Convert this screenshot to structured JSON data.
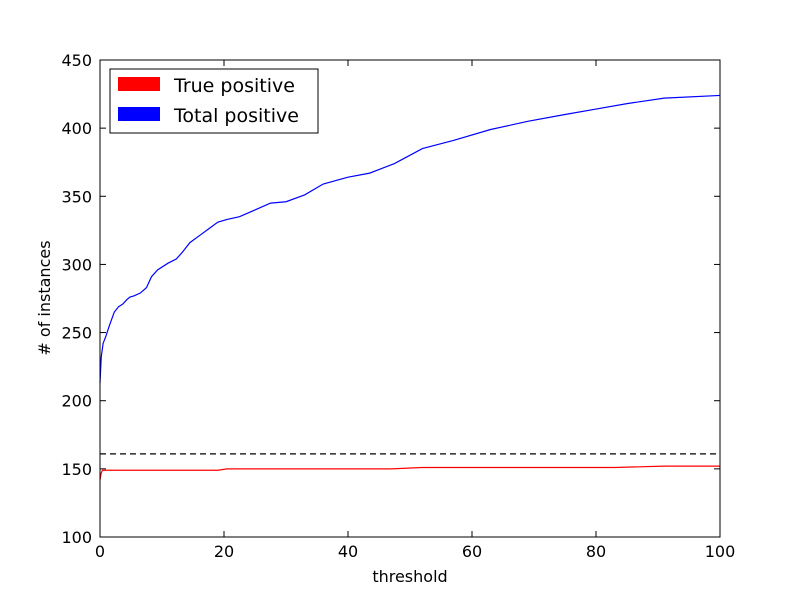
{
  "chart_data": {
    "type": "line",
    "title": "",
    "xlabel": "threshold",
    "ylabel": "# of instances",
    "xlim": [
      0,
      100
    ],
    "ylim": [
      100,
      450
    ],
    "x_ticks": [
      0,
      20,
      40,
      60,
      80,
      100
    ],
    "y_ticks": [
      100,
      150,
      200,
      250,
      300,
      350,
      400,
      450
    ],
    "grid": false,
    "legend_position": "upper-left",
    "series": [
      {
        "name": "True positive",
        "color": "#ff0000",
        "x": [
          0,
          0.2,
          0.4,
          1,
          3,
          10,
          19,
          20.5,
          30,
          40,
          47,
          52,
          60,
          70,
          83,
          91,
          100
        ],
        "y": [
          142,
          147,
          149,
          149,
          149,
          149,
          149,
          150,
          150,
          150,
          150,
          151,
          151,
          151,
          151,
          152,
          152
        ]
      },
      {
        "name": "Total positive",
        "color": "#0000ff",
        "x": [
          0,
          0.2,
          0.5,
          1,
          1.5,
          2.3,
          3,
          3.7,
          4.3,
          4.8,
          5.5,
          6.5,
          7.5,
          8.3,
          9.3,
          11,
          12.3,
          13.3,
          14.5,
          16,
          17.5,
          19,
          20.5,
          22.5,
          25,
          27.5,
          30,
          33,
          36,
          40,
          43.5,
          47.5,
          52,
          57,
          63,
          69,
          75,
          80,
          85,
          91,
          100
        ],
        "y": [
          213,
          232,
          242,
          248,
          255,
          265,
          269,
          271,
          274,
          276,
          277,
          279,
          283,
          291,
          296,
          301,
          304,
          309,
          316,
          321,
          326,
          331,
          333,
          335,
          340,
          345,
          346,
          351,
          359,
          364,
          367,
          374,
          385,
          391,
          399,
          405,
          410,
          414,
          418,
          422,
          424
        ]
      }
    ],
    "reference_lines": [
      {
        "type": "horizontal",
        "y": 161,
        "style": "dashed",
        "color": "#000000"
      }
    ]
  }
}
